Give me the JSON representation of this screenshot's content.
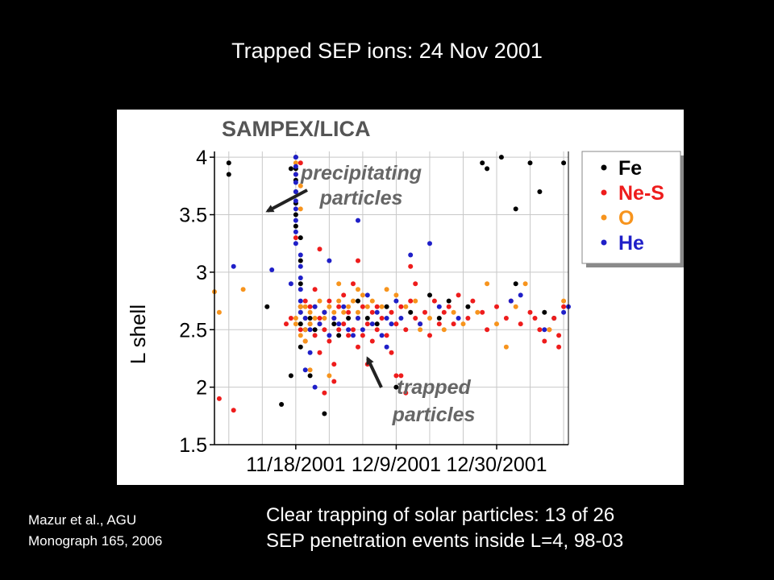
{
  "slide": {
    "title": "Trapped SEP ions: 24 Nov 2001",
    "citation": [
      "Mazur et al., AGU",
      "Monograph 165, 2006"
    ],
    "caption": [
      "Clear trapping of solar particles: 13 of 26",
      "SEP penetration events inside L=4, 98-03"
    ]
  },
  "chart_data": {
    "type": "scatter",
    "title": "SAMPEX/LICA",
    "xlabel": "",
    "ylabel": "L shell",
    "x_ticks": [
      "11/18/2001",
      "12/9/2001",
      "12/30/2001"
    ],
    "x_range": [
      "2001-11-01",
      "2002-01-14"
    ],
    "ylim": [
      1.5,
      4.05
    ],
    "y_ticks": [
      1.5,
      2,
      2.5,
      3,
      3.5,
      4
    ],
    "grid": true,
    "legend_position": "top-right",
    "annotations": [
      {
        "text": [
          "precipitating",
          "particles"
        ],
        "points_to": {
          "x": "2001-11-18",
          "y": 3.5
        }
      },
      {
        "text": [
          "trapped",
          "particles"
        ],
        "points_to": {
          "x": "2001-12-07",
          "y": 2.3
        }
      }
    ],
    "series": [
      {
        "name": "Fe",
        "color": "#000000",
        "points": [
          [
            "2001-11-04",
            3.95
          ],
          [
            "2001-11-04",
            3.85
          ],
          [
            "2001-11-12",
            2.7
          ],
          [
            "2001-11-15",
            1.85
          ],
          [
            "2001-11-17",
            2.1
          ],
          [
            "2001-11-17",
            3.9
          ],
          [
            "2001-11-18",
            3.6
          ],
          [
            "2001-11-19",
            2.35
          ],
          [
            "2001-11-21",
            2.1
          ],
          [
            "2001-11-24",
            1.77
          ],
          [
            "2001-11-24",
            2.65
          ],
          [
            "2001-11-27",
            2.45
          ],
          [
            "2001-12-01",
            2.75
          ],
          [
            "2001-12-03",
            2.6
          ],
          [
            "2001-12-07",
            2.7
          ],
          [
            "2001-12-09",
            2.0
          ],
          [
            "2001-12-12",
            2.65
          ],
          [
            "2001-12-16",
            2.8
          ],
          [
            "2001-12-20",
            2.75
          ],
          [
            "2001-12-24",
            2.7
          ],
          [
            "2001-12-27",
            3.95
          ],
          [
            "2001-12-28",
            3.9
          ],
          [
            "2001-12-31",
            4.0
          ],
          [
            "2002-01-03",
            3.55
          ],
          [
            "2002-01-03",
            2.9
          ],
          [
            "2002-01-06",
            3.95
          ],
          [
            "2002-01-08",
            3.7
          ],
          [
            "2002-01-09",
            2.65
          ],
          [
            "2002-01-11",
            2.6
          ],
          [
            "2002-01-13",
            3.95
          ],
          [
            "2001-11-18",
            4.0
          ],
          [
            "2001-11-18",
            3.9
          ],
          [
            "2001-11-18",
            3.8
          ],
          [
            "2001-11-18",
            3.7
          ],
          [
            "2001-11-18",
            3.5
          ],
          [
            "2001-11-18",
            3.4
          ],
          [
            "2001-11-19",
            3.3
          ],
          [
            "2001-11-19",
            3.1
          ],
          [
            "2001-11-19",
            2.9
          ],
          [
            "2001-11-19",
            2.7
          ],
          [
            "2001-11-19",
            2.55
          ],
          [
            "2001-11-20",
            2.5
          ],
          [
            "2001-11-21",
            2.6
          ],
          [
            "2001-11-22",
            2.5
          ],
          [
            "2001-11-26",
            2.55
          ],
          [
            "2001-11-29",
            2.6
          ],
          [
            "2001-12-05",
            2.55
          ],
          [
            "2001-12-18",
            2.6
          ]
        ]
      },
      {
        "name": "Ne-S",
        "color": "#ee1c1c",
        "points": [
          [
            "2001-11-02",
            1.9
          ],
          [
            "2001-11-05",
            1.8
          ],
          [
            "2001-11-16",
            2.55
          ],
          [
            "2001-11-17",
            2.6
          ],
          [
            "2001-11-19",
            2.7
          ],
          [
            "2001-11-19",
            2.5
          ],
          [
            "2001-11-20",
            2.75
          ],
          [
            "2001-11-20",
            2.4
          ],
          [
            "2001-11-21",
            2.55
          ],
          [
            "2001-11-21",
            2.7
          ],
          [
            "2001-11-22",
            2.45
          ],
          [
            "2001-11-22",
            2.85
          ],
          [
            "2001-11-23",
            2.6
          ],
          [
            "2001-11-23",
            2.3
          ],
          [
            "2001-11-24",
            2.65
          ],
          [
            "2001-11-24",
            2.5
          ],
          [
            "2001-11-25",
            2.4
          ],
          [
            "2001-11-25",
            2.75
          ],
          [
            "2001-11-26",
            2.6
          ],
          [
            "2001-11-26",
            2.2
          ],
          [
            "2001-11-27",
            2.7
          ],
          [
            "2001-11-27",
            2.5
          ],
          [
            "2001-11-28",
            2.55
          ],
          [
            "2001-11-28",
            2.8
          ],
          [
            "2001-11-29",
            2.45
          ],
          [
            "2001-11-29",
            2.65
          ],
          [
            "2001-11-30",
            2.5
          ],
          [
            "2001-11-30",
            2.9
          ],
          [
            "2001-12-01",
            2.6
          ],
          [
            "2001-12-01",
            2.35
          ],
          [
            "2001-12-02",
            2.7
          ],
          [
            "2001-12-02",
            2.45
          ],
          [
            "2001-12-03",
            2.55
          ],
          [
            "2001-12-03",
            2.2
          ],
          [
            "2001-12-04",
            2.65
          ],
          [
            "2001-12-04",
            2.4
          ],
          [
            "2001-12-05",
            2.7
          ],
          [
            "2001-12-05",
            2.5
          ],
          [
            "2001-12-06",
            2.6
          ],
          [
            "2001-12-07",
            2.45
          ],
          [
            "2001-12-08",
            2.65
          ],
          [
            "2001-12-08",
            2.3
          ],
          [
            "2001-12-09",
            2.55
          ],
          [
            "2001-12-10",
            2.7
          ],
          [
            "2001-12-10",
            2.1
          ],
          [
            "2001-12-11",
            2.5
          ],
          [
            "2001-12-12",
            2.75
          ],
          [
            "2001-12-13",
            2.6
          ],
          [
            "2001-12-13",
            2.9
          ],
          [
            "2001-12-14",
            2.55
          ],
          [
            "2001-12-15",
            2.65
          ],
          [
            "2001-12-16",
            2.45
          ],
          [
            "2001-12-17",
            2.75
          ],
          [
            "2001-12-18",
            2.55
          ],
          [
            "2001-12-19",
            2.65
          ],
          [
            "2001-12-20",
            2.7
          ],
          [
            "2001-12-21",
            2.55
          ],
          [
            "2001-12-22",
            2.8
          ],
          [
            "2001-12-24",
            2.6
          ],
          [
            "2001-12-25",
            2.75
          ],
          [
            "2001-12-27",
            2.65
          ],
          [
            "2001-12-28",
            2.5
          ],
          [
            "2001-12-30",
            2.7
          ],
          [
            "2002-01-01",
            2.6
          ],
          [
            "2002-01-02",
            2.75
          ],
          [
            "2002-01-04",
            2.55
          ],
          [
            "2002-01-06",
            2.65
          ],
          [
            "2002-01-07",
            2.6
          ],
          [
            "2002-01-08",
            2.5
          ],
          [
            "2002-01-09",
            2.4
          ],
          [
            "2002-01-10",
            2.5
          ],
          [
            "2002-01-11",
            2.6
          ],
          [
            "2002-01-12",
            2.45
          ],
          [
            "2002-01-12",
            2.35
          ],
          [
            "2002-01-13",
            2.7
          ],
          [
            "2001-12-09",
            2.1
          ],
          [
            "2001-12-11",
            1.95
          ],
          [
            "2001-11-26",
            2.05
          ],
          [
            "2001-11-24",
            1.95
          ],
          [
            "2001-11-18",
            3.85
          ],
          [
            "2001-11-18",
            3.3
          ],
          [
            "2001-11-19",
            3.95
          ],
          [
            "2001-12-12",
            3.05
          ],
          [
            "2001-12-01",
            3.1
          ],
          [
            "2001-11-23",
            3.2
          ]
        ]
      },
      {
        "name": "O",
        "color": "#f7941d",
        "points": [
          [
            "2001-11-01",
            2.83
          ],
          [
            "2001-11-02",
            2.65
          ],
          [
            "2001-11-07",
            2.85
          ],
          [
            "2001-11-18",
            2.6
          ],
          [
            "2001-11-18",
            2.55
          ],
          [
            "2001-11-19",
            2.65
          ],
          [
            "2001-11-19",
            2.45
          ],
          [
            "2001-11-19",
            2.7
          ],
          [
            "2001-11-20",
            2.6
          ],
          [
            "2001-11-20",
            2.5
          ],
          [
            "2001-11-20",
            2.7
          ],
          [
            "2001-11-21",
            2.55
          ],
          [
            "2001-11-21",
            2.65
          ],
          [
            "2001-11-22",
            2.6
          ],
          [
            "2001-11-22",
            2.7
          ],
          [
            "2001-11-23",
            2.55
          ],
          [
            "2001-11-23",
            2.75
          ],
          [
            "2001-11-24",
            2.6
          ],
          [
            "2001-11-25",
            2.7
          ],
          [
            "2001-11-26",
            2.65
          ],
          [
            "2001-11-27",
            2.75
          ],
          [
            "2001-11-28",
            2.65
          ],
          [
            "2001-11-29",
            2.7
          ],
          [
            "2001-11-30",
            2.75
          ],
          [
            "2001-12-01",
            2.65
          ],
          [
            "2001-12-02",
            2.8
          ],
          [
            "2001-12-03",
            2.7
          ],
          [
            "2001-12-04",
            2.75
          ],
          [
            "2001-12-06",
            2.7
          ],
          [
            "2001-12-07",
            2.85
          ],
          [
            "2001-12-09",
            2.8
          ],
          [
            "2001-12-11",
            2.7
          ],
          [
            "2001-12-13",
            2.75
          ],
          [
            "2001-12-14",
            2.5
          ],
          [
            "2001-12-16",
            2.6
          ],
          [
            "2001-12-19",
            2.5
          ],
          [
            "2001-12-21",
            2.65
          ],
          [
            "2001-12-23",
            2.55
          ],
          [
            "2001-12-26",
            2.65
          ],
          [
            "2001-12-28",
            2.9
          ],
          [
            "2001-12-30",
            2.55
          ],
          [
            "2002-01-01",
            2.35
          ],
          [
            "2002-01-03",
            2.7
          ],
          [
            "2002-01-05",
            2.9
          ],
          [
            "2002-01-10",
            2.5
          ],
          [
            "2002-01-13",
            2.75
          ],
          [
            "2001-11-18",
            3.95
          ],
          [
            "2001-11-19",
            3.75
          ],
          [
            "2001-11-19",
            3.55
          ],
          [
            "2001-11-20",
            2.4
          ],
          [
            "2001-11-21",
            2.15
          ],
          [
            "2001-11-25",
            2.1
          ],
          [
            "2001-12-01",
            2.85
          ],
          [
            "2001-11-27",
            2.9
          ]
        ]
      },
      {
        "name": "He",
        "color": "#1f1fc8",
        "points": [
          [
            "2001-11-05",
            3.05
          ],
          [
            "2001-11-13",
            3.02
          ],
          [
            "2001-11-17",
            2.9
          ],
          [
            "2001-11-18",
            4.0
          ],
          [
            "2001-11-18",
            3.92
          ],
          [
            "2001-11-18",
            3.85
          ],
          [
            "2001-11-18",
            3.78
          ],
          [
            "2001-11-18",
            3.7
          ],
          [
            "2001-11-18",
            3.62
          ],
          [
            "2001-11-18",
            3.55
          ],
          [
            "2001-11-18",
            3.45
          ],
          [
            "2001-11-18",
            3.35
          ],
          [
            "2001-11-18",
            3.25
          ],
          [
            "2001-11-19",
            3.15
          ],
          [
            "2001-11-19",
            3.05
          ],
          [
            "2001-11-19",
            2.95
          ],
          [
            "2001-11-19",
            2.85
          ],
          [
            "2001-11-19",
            2.75
          ],
          [
            "2001-11-19",
            2.65
          ],
          [
            "2001-11-20",
            2.6
          ],
          [
            "2001-11-21",
            2.5
          ],
          [
            "2001-11-22",
            2.7
          ],
          [
            "2001-11-23",
            2.55
          ],
          [
            "2001-11-24",
            2.65
          ],
          [
            "2001-11-25",
            2.45
          ],
          [
            "2001-11-26",
            2.6
          ],
          [
            "2001-11-27",
            2.55
          ],
          [
            "2001-11-28",
            2.7
          ],
          [
            "2001-11-29",
            2.5
          ],
          [
            "2001-11-30",
            2.45
          ],
          [
            "2001-12-01",
            2.6
          ],
          [
            "2001-12-02",
            2.5
          ],
          [
            "2001-12-03",
            2.8
          ],
          [
            "2001-12-04",
            2.55
          ],
          [
            "2001-12-05",
            2.65
          ],
          [
            "2001-12-06",
            2.45
          ],
          [
            "2001-12-07",
            2.6
          ],
          [
            "2001-12-08",
            2.55
          ],
          [
            "2001-12-09",
            2.75
          ],
          [
            "2001-12-10",
            2.6
          ],
          [
            "2001-12-12",
            3.15
          ],
          [
            "2001-12-14",
            2.55
          ],
          [
            "2001-12-16",
            3.25
          ],
          [
            "2001-12-18",
            2.7
          ],
          [
            "2001-12-22",
            2.6
          ],
          [
            "2002-01-02",
            2.75
          ],
          [
            "2002-01-04",
            2.8
          ],
          [
            "2002-01-09",
            2.5
          ],
          [
            "2002-01-13",
            2.65
          ],
          [
            "2002-01-14",
            2.7
          ],
          [
            "2001-12-01",
            3.45
          ],
          [
            "2001-11-25",
            3.1
          ],
          [
            "2001-11-21",
            2.3
          ],
          [
            "2001-11-20",
            2.15
          ],
          [
            "2001-11-22",
            2.0
          ],
          [
            "2001-12-07",
            2.35
          ]
        ]
      }
    ]
  }
}
